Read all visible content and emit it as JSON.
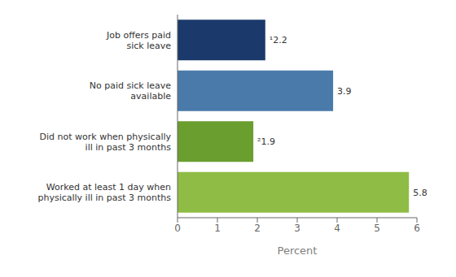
{
  "chart_data": {
    "type": "bar",
    "orientation": "horizontal",
    "categories": [
      "Job offers paid\nsick leave",
      "No paid sick leave\navailable",
      "Did not work when physically\nill in past 3 months",
      "Worked at least 1 day when\nphysically ill in past 3 months"
    ],
    "values": [
      2.2,
      3.9,
      1.9,
      5.8
    ],
    "value_labels": [
      "¹2.2",
      "3.9",
      "²1.9",
      "5.8"
    ],
    "colors": [
      "#1b3a6b",
      "#4a7aaa",
      "#6a9e2f",
      "#8fbc45"
    ],
    "xlabel": "Percent",
    "xlim": [
      0,
      6
    ],
    "xticks": [
      0,
      1,
      2,
      3,
      4,
      5,
      6
    ],
    "data_labels": true,
    "grid": false
  }
}
